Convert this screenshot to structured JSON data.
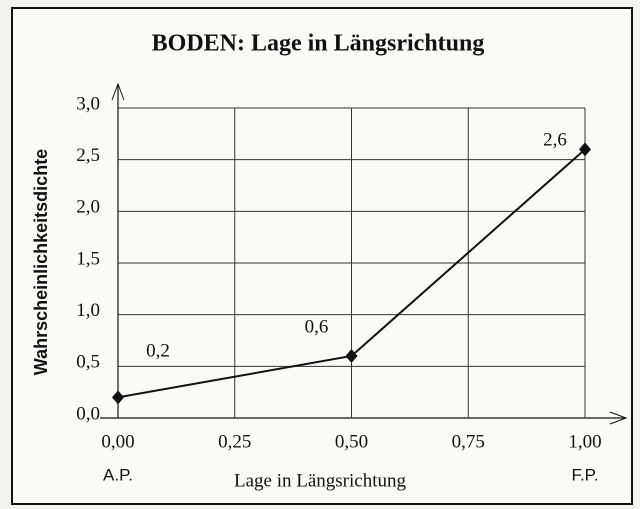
{
  "chart_data": {
    "type": "line",
    "title": "BODEN: Lage in Längsrichtung",
    "xlabel": "Lage in Längsrichtung",
    "ylabel": "Wahrscheinlichkeitsdichte",
    "x": [
      0,
      0.5,
      1
    ],
    "values": [
      0.2,
      0.6,
      2.6
    ],
    "value_labels": [
      "0,2",
      "0,6",
      "2,6"
    ],
    "color": "#111111",
    "xlim": [
      0,
      1
    ],
    "xticks": [
      {
        "value": 0,
        "label": "0,00"
      },
      {
        "value": 0.25,
        "label": "0,25"
      },
      {
        "value": 0.5,
        "label": "0,50"
      },
      {
        "value": 0.75,
        "label": "0,75"
      },
      {
        "value": 1,
        "label": "1,00"
      }
    ],
    "ylim": [
      0,
      3
    ],
    "yticks": [
      {
        "value": 0,
        "label": "0,0"
      },
      {
        "value": 0.5,
        "label": "0,5"
      },
      {
        "value": 1,
        "label": "1,0"
      },
      {
        "value": 1.5,
        "label": "1,5"
      },
      {
        "value": 2,
        "label": "2,0"
      },
      {
        "value": 2.5,
        "label": "2,5"
      },
      {
        "value": 3,
        "label": "3,0"
      }
    ],
    "grid": true,
    "annotations": [
      "A.P.",
      "F.P."
    ]
  }
}
